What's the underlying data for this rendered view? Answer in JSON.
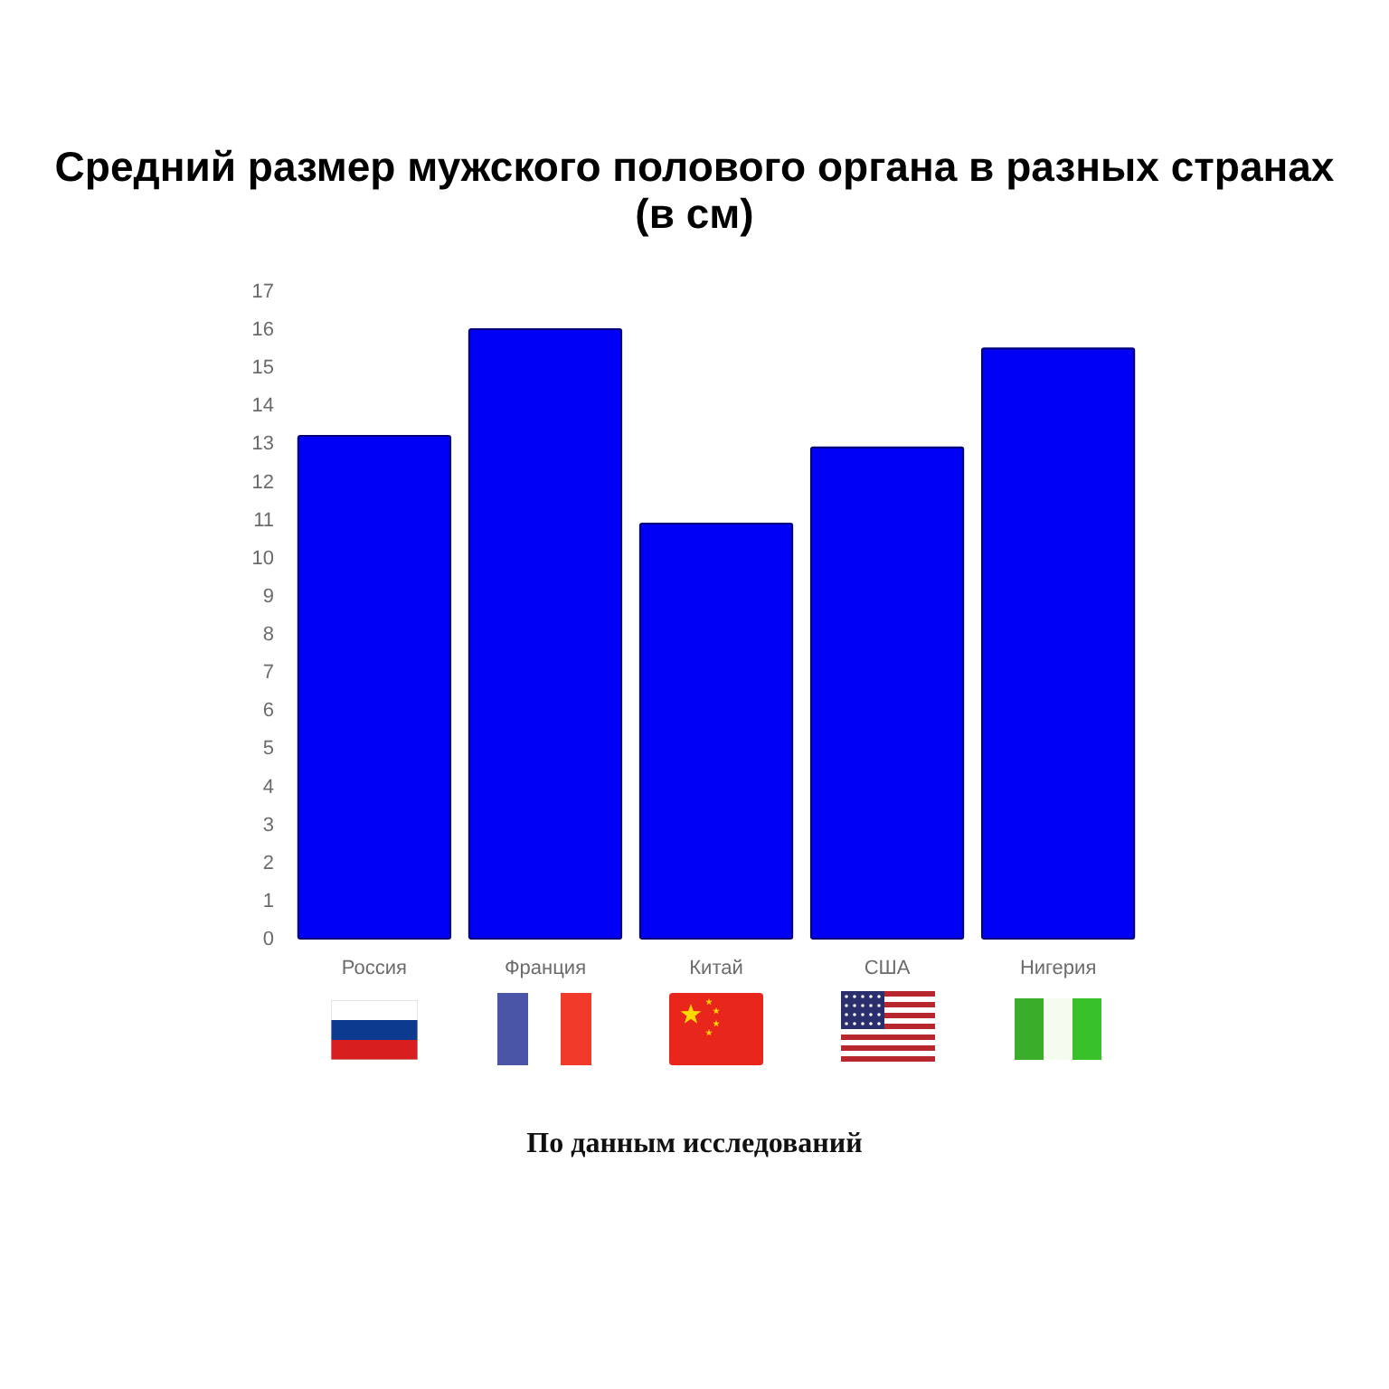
{
  "chart_data": {
    "type": "bar",
    "title": "Средний размер мужского полового органа в разных странах (в см)",
    "categories": [
      "Россия",
      "Франция",
      "Китай",
      "США",
      "Нигерия"
    ],
    "values": [
      13.2,
      16.0,
      10.9,
      12.9,
      15.5
    ],
    "color": "#0000f5",
    "ylim": [
      0,
      17
    ],
    "yticks": [
      0,
      1,
      2,
      3,
      4,
      5,
      6,
      7,
      8,
      9,
      10,
      11,
      12,
      13,
      14,
      15,
      16,
      17
    ],
    "annotations": [
      "По данным исследований"
    ]
  }
}
